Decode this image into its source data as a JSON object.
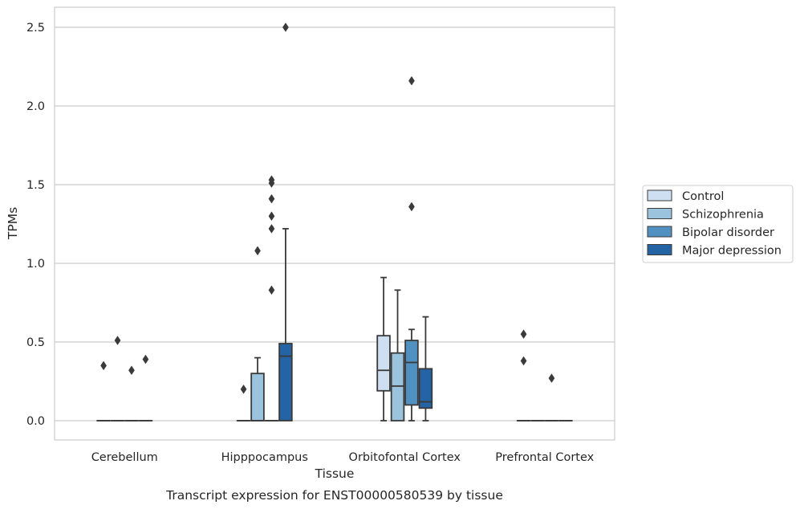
{
  "chart_data": {
    "type": "box",
    "title": "",
    "caption": "Transcript expression for ENST00000580539 by tissue",
    "xlabel": "Tissue",
    "ylabel": "TPMs",
    "ylim": [
      -0.12,
      2.63
    ],
    "yticks": [
      "0.0",
      "0.5",
      "1.0",
      "1.5",
      "2.0",
      "2.5"
    ],
    "grid": "horizontal",
    "legend_position": "right",
    "categories": [
      "Cerebellum",
      "Hipppocampus",
      "Orbitofontal Cortex",
      "Prefrontal Cortex"
    ],
    "series": [
      {
        "name": "Control",
        "color": "#cddff0",
        "boxes": [
          {
            "q1": 0,
            "median": 0,
            "q3": 0,
            "whisker_low": 0,
            "whisker_high": 0,
            "outliers": [
              0.35
            ]
          },
          {
            "q1": 0,
            "median": 0,
            "q3": 0,
            "whisker_low": 0,
            "whisker_high": 0,
            "outliers": [
              0.2
            ]
          },
          {
            "q1": 0.19,
            "median": 0.32,
            "q3": 0.54,
            "whisker_low": 0,
            "whisker_high": 0.91,
            "outliers": []
          },
          {
            "q1": 0,
            "median": 0,
            "q3": 0,
            "whisker_low": 0,
            "whisker_high": 0,
            "outliers": [
              0.55,
              0.38
            ]
          }
        ]
      },
      {
        "name": "Schizophrenia",
        "color": "#9bc3de",
        "boxes": [
          {
            "q1": 0,
            "median": 0,
            "q3": 0,
            "whisker_low": 0,
            "whisker_high": 0,
            "outliers": [
              0.51
            ]
          },
          {
            "q1": 0,
            "median": 0,
            "q3": 0.3,
            "whisker_low": 0,
            "whisker_high": 0.4,
            "outliers": [
              1.08
            ]
          },
          {
            "q1": 0,
            "median": 0.22,
            "q3": 0.43,
            "whisker_low": 0,
            "whisker_high": 0.83,
            "outliers": []
          },
          {
            "q1": 0,
            "median": 0,
            "q3": 0,
            "whisker_low": 0,
            "whisker_high": 0,
            "outliers": []
          }
        ]
      },
      {
        "name": "Bipolar disorder",
        "color": "#5191c2",
        "boxes": [
          {
            "q1": 0,
            "median": 0,
            "q3": 0,
            "whisker_low": 0,
            "whisker_high": 0,
            "outliers": [
              0.32
            ]
          },
          {
            "q1": 0,
            "median": 0,
            "q3": 0,
            "whisker_low": 0,
            "whisker_high": 0,
            "outliers": [
              1.41,
              1.3,
              1.22,
              0.83,
              1.53,
              1.51
            ]
          },
          {
            "q1": 0.1,
            "median": 0.37,
            "q3": 0.51,
            "whisker_low": 0,
            "whisker_high": 0.58,
            "outliers": [
              2.16,
              1.36
            ]
          },
          {
            "q1": 0,
            "median": 0,
            "q3": 0,
            "whisker_low": 0,
            "whisker_high": 0,
            "outliers": [
              0.27
            ]
          }
        ]
      },
      {
        "name": "Major depression",
        "color": "#2464a5",
        "boxes": [
          {
            "q1": 0,
            "median": 0,
            "q3": 0,
            "whisker_low": 0,
            "whisker_high": 0,
            "outliers": [
              0.39
            ]
          },
          {
            "q1": 0,
            "median": 0.41,
            "q3": 0.49,
            "whisker_low": 0,
            "whisker_high": 1.22,
            "outliers": [
              2.5
            ]
          },
          {
            "q1": 0.08,
            "median": 0.12,
            "q3": 0.33,
            "whisker_low": 0,
            "whisker_high": 0.66,
            "outliers": []
          },
          {
            "q1": 0,
            "median": 0,
            "q3": 0,
            "whisker_low": 0,
            "whisker_high": 0,
            "outliers": []
          }
        ]
      }
    ]
  }
}
